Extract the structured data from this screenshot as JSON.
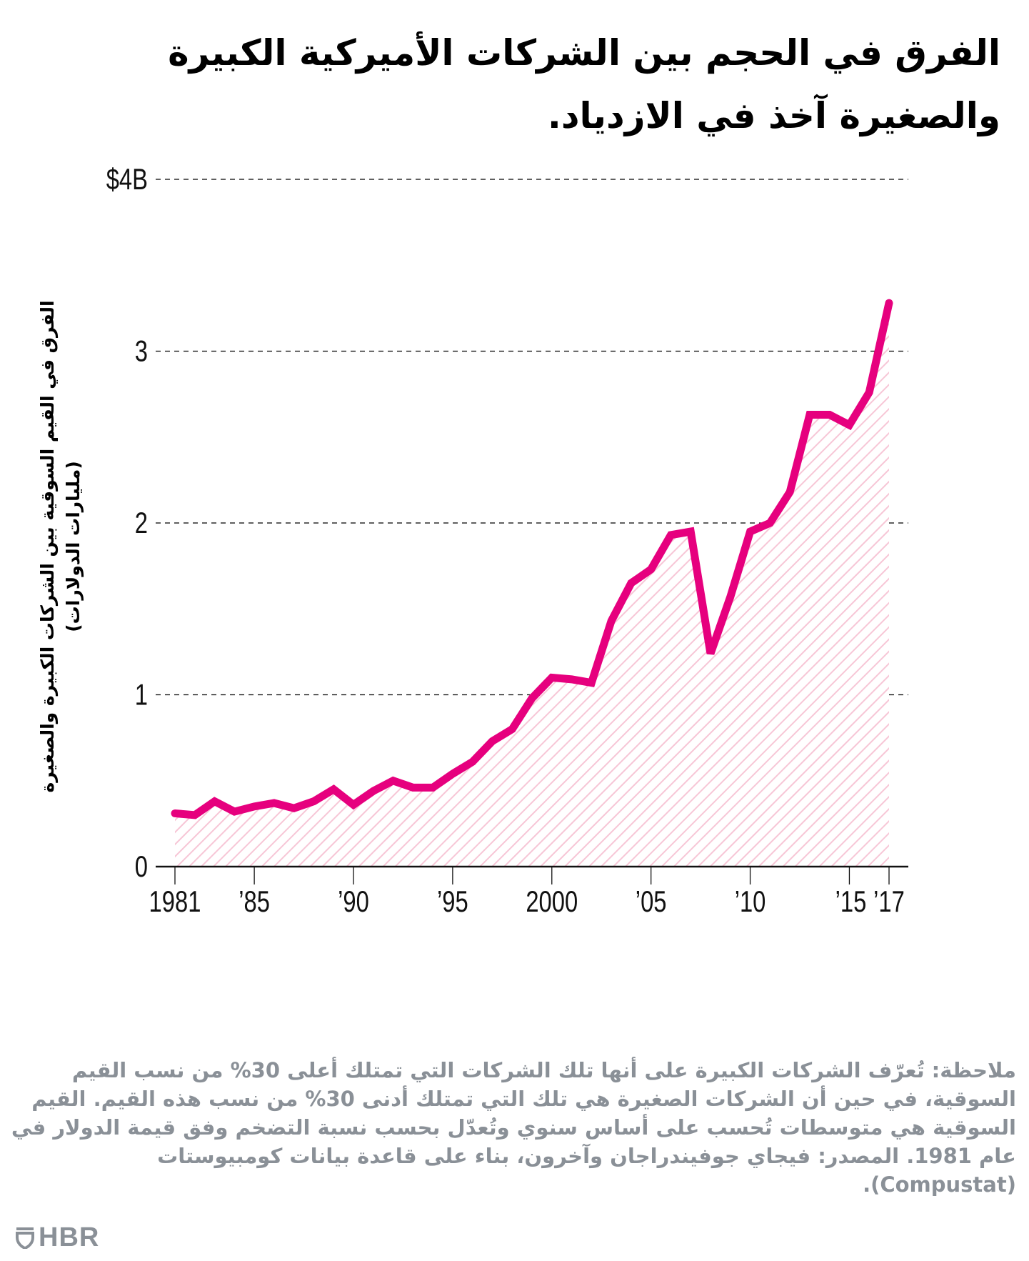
{
  "title": "الفرق في الحجم بين الشركات الأميركية الكبيرة والصغيرة آخذ في الازدياد.",
  "note": "ملاحظة: تُعرّف الشركات الكبيرة على أنها تلك الشركات التي تمتلك أعلى 30% من نسب القيم السوقية، في حين أن الشركات الصغيرة هي تلك التي تمتلك أدنى 30% من نسب هذه القيم. القيم السوقية هي متوسطات تُحسب على أساس سنوي وتُعدّل بحسب نسبة التضخم وفق قيمة الدولار في عام 1981. المصدر: فيجاي جوفيندراجان وآخرون، بناء على قاعدة بيانات كومبيوستات (Compustat).",
  "brand": {
    "name": "HBR",
    "icon": "hbr-shield-icon"
  },
  "colors": {
    "line": "#e6007e",
    "hatch": "#f7c6d6",
    "text": "#000000",
    "note": "#8a9097",
    "grid": "#000000"
  },
  "chart_data": {
    "type": "area",
    "title": "الفرق في الحجم بين الشركات الأميركية الكبيرة والصغيرة آخذ في الازدياد.",
    "xlabel": "",
    "ylabel": "الفرق في القيم السوقية بين الشركات الكبيرة والصغيرة (مليارات الدولارات)",
    "x": [
      1981,
      1982,
      1983,
      1984,
      1985,
      1986,
      1987,
      1988,
      1989,
      1990,
      1991,
      1992,
      1993,
      1994,
      1995,
      1996,
      1997,
      1998,
      1999,
      2000,
      2001,
      2002,
      2003,
      2004,
      2005,
      2006,
      2007,
      2008,
      2009,
      2010,
      2011,
      2012,
      2013,
      2014,
      2015,
      2016,
      2017
    ],
    "series": [
      {
        "name": "Market value gap ($B, 1981 dollars)",
        "values": [
          0.31,
          0.3,
          0.38,
          0.32,
          0.35,
          0.37,
          0.34,
          0.38,
          0.45,
          0.36,
          0.44,
          0.5,
          0.46,
          0.46,
          0.54,
          0.61,
          0.73,
          0.8,
          0.98,
          1.1,
          1.09,
          1.07,
          1.43,
          1.65,
          1.73,
          1.93,
          1.95,
          1.24,
          1.57,
          1.95,
          2.0,
          2.18,
          2.63,
          2.63,
          2.57,
          2.76,
          3.28
        ]
      }
    ],
    "xlim": [
      1981,
      2017
    ],
    "ylim": [
      0,
      4
    ],
    "yticks": [
      0,
      1,
      2,
      3,
      4
    ],
    "ytick_labels": [
      "0",
      "1",
      "2",
      "3",
      "$4B"
    ],
    "xticks": [
      1981,
      1985,
      1990,
      1995,
      2000,
      2005,
      2010,
      2015,
      2017
    ],
    "xtick_labels": [
      "1981",
      "’85",
      "’90",
      "’95",
      "2000",
      "’05",
      "’10",
      "’15",
      "’17"
    ],
    "grid": "horizontal-dashed",
    "legend": "none"
  }
}
